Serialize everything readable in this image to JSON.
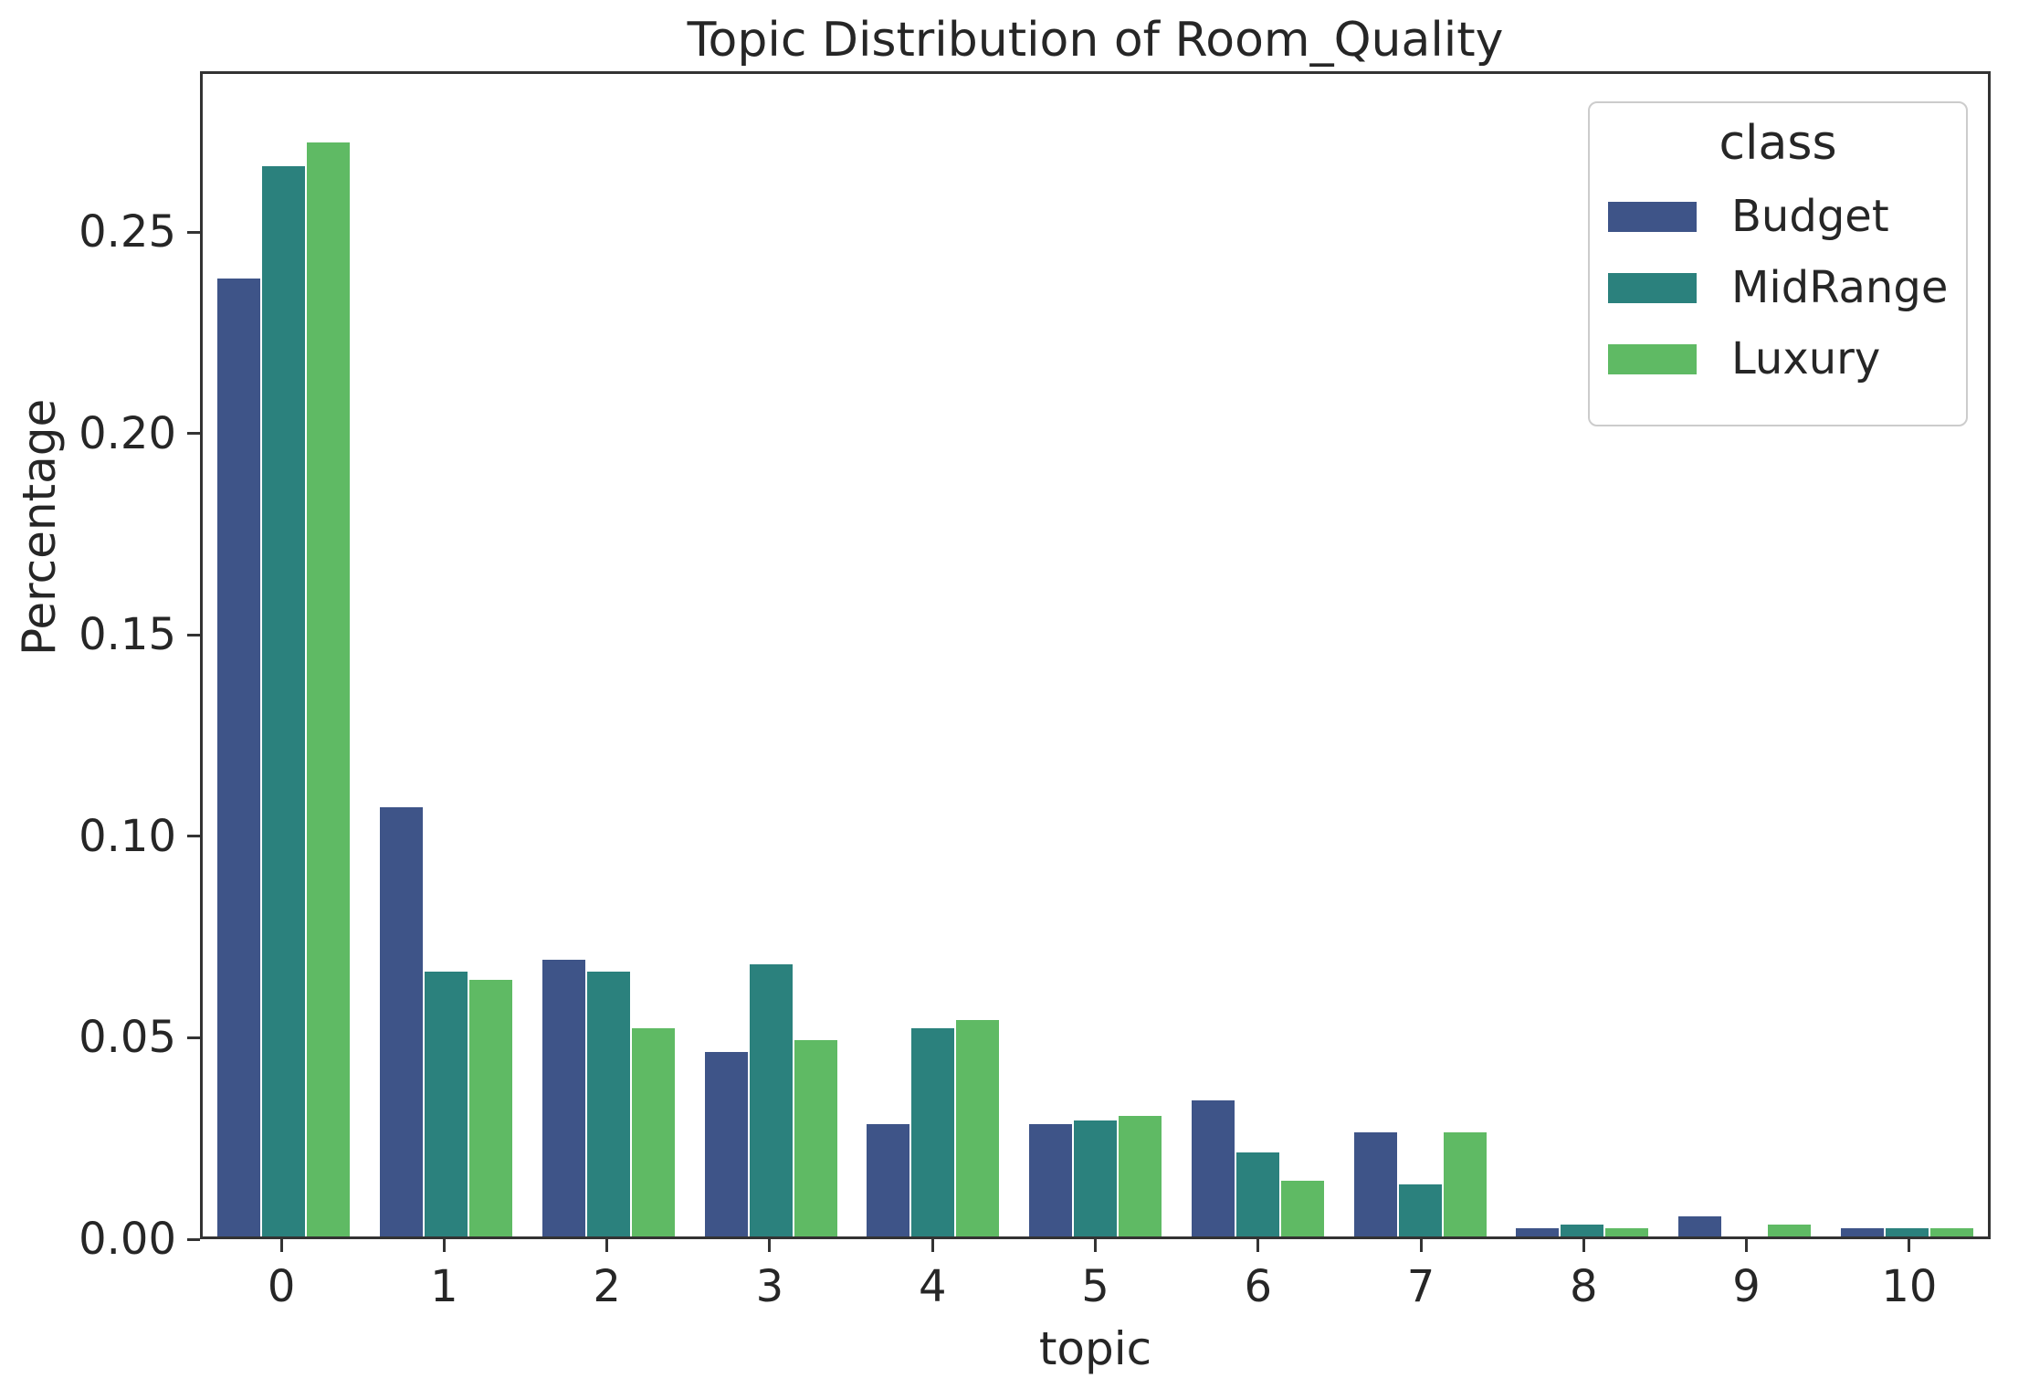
{
  "chart_data": {
    "type": "bar",
    "title": "Topic Distribution of Room_Quality",
    "xlabel": "topic",
    "ylabel": "Percentage",
    "categories": [
      "0",
      "1",
      "2",
      "3",
      "4",
      "5",
      "6",
      "7",
      "8",
      "9",
      "10"
    ],
    "series": [
      {
        "name": "Budget",
        "color": "#3e5488",
        "values": [
          0.239,
          0.107,
          0.069,
          0.046,
          0.028,
          0.028,
          0.034,
          0.026,
          0.002,
          0.005,
          0.002
        ]
      },
      {
        "name": "MidRange",
        "color": "#2b817d",
        "values": [
          0.267,
          0.066,
          0.066,
          0.068,
          0.052,
          0.029,
          0.021,
          0.013,
          0.003,
          0.0,
          0.002
        ]
      },
      {
        "name": "Luxury",
        "color": "#5fba64",
        "values": [
          0.273,
          0.064,
          0.052,
          0.049,
          0.054,
          0.03,
          0.014,
          0.026,
          0.002,
          0.003,
          0.002
        ]
      }
    ],
    "legend": {
      "title": "class",
      "position": "upper right"
    },
    "yticks": {
      "values": [
        0.0,
        0.05,
        0.1,
        0.15,
        0.2,
        0.25
      ],
      "labels": [
        "0.00",
        "0.05",
        "0.10",
        "0.15",
        "0.20",
        "0.25"
      ]
    },
    "ylim": [
      0,
      0.29
    ],
    "grid": false,
    "background_color": "#ffffff",
    "text_color": "#262626",
    "spine_color": "#333333"
  }
}
